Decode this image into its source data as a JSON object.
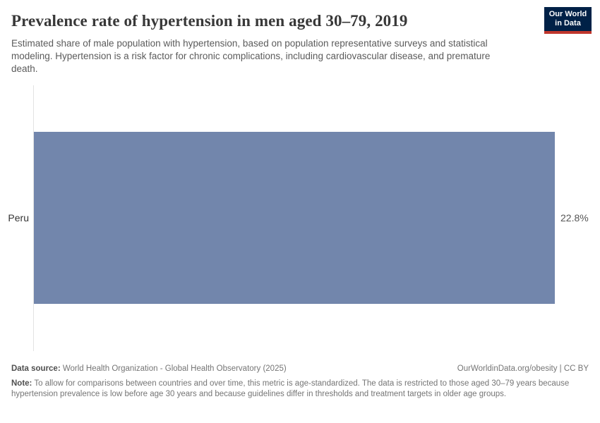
{
  "header": {
    "title": "Prevalence rate of hypertension in men aged 30–79, 2019",
    "subtitle": "Estimated share of male population with hypertension, based on population representative surveys and statistical modeling. Hypertension is a risk factor for chronic complications, including cardiovascular disease, and premature death.",
    "logo": {
      "line1": "Our World",
      "line2": "in Data"
    }
  },
  "chart_data": {
    "type": "bar",
    "orientation": "horizontal",
    "title": "Prevalence rate of hypertension in men aged 30–79, 2019",
    "categories": [
      "Peru"
    ],
    "values": [
      22.8
    ],
    "value_labels": [
      "22.8%"
    ],
    "xlabel": "",
    "ylabel": "",
    "xlim": [
      0,
      22.8
    ],
    "grid": false,
    "legend": false
  },
  "footer": {
    "source_label": "Data source:",
    "source_text": " World Health Organization - Global Health Observatory (2025)",
    "attribution": "OurWorldinData.org/obesity | CC BY",
    "note_label": "Note:",
    "note_text": " To allow for comparisons between countries and over time, this metric is age-standardized. The data is restricted to those aged 30–79 years because hypertension prevalence is low before age 30 years and because guidelines differ in thresholds and treatment targets in older age groups."
  },
  "colors": {
    "bar": "#7286ac",
    "axis": "#e2e2e2",
    "logo_bg": "#002147",
    "logo_stripe": "#c0362c"
  }
}
